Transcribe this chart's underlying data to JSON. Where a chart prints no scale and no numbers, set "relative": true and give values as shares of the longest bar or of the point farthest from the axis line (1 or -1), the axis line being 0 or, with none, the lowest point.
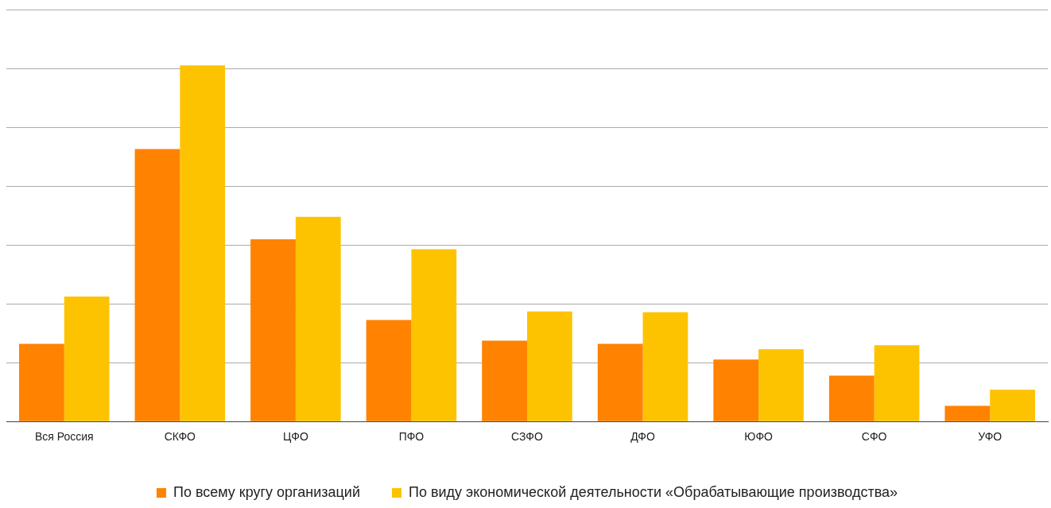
{
  "chart_data": {
    "type": "bar",
    "relative": true,
    "grid": "y",
    "legend": "bottom",
    "categories": [
      "Вся Россия",
      "СКФО",
      "ЦФО",
      "ПФО",
      "СЗФО",
      "ДФО",
      "ЮФО",
      "СФО",
      "УФО"
    ],
    "series": [
      {
        "name": "По всему кругу организаций",
        "color": "#ff8200",
        "values": [
          0.218,
          0.765,
          0.512,
          0.285,
          0.227,
          0.218,
          0.174,
          0.129,
          0.044
        ]
      },
      {
        "name": "По виду экономической деятельности «Обрабатывающие производства»",
        "color": "#fdc300",
        "values": [
          0.351,
          1,
          0.575,
          0.484,
          0.309,
          0.307,
          0.203,
          0.214,
          0.089
        ]
      }
    ]
  }
}
